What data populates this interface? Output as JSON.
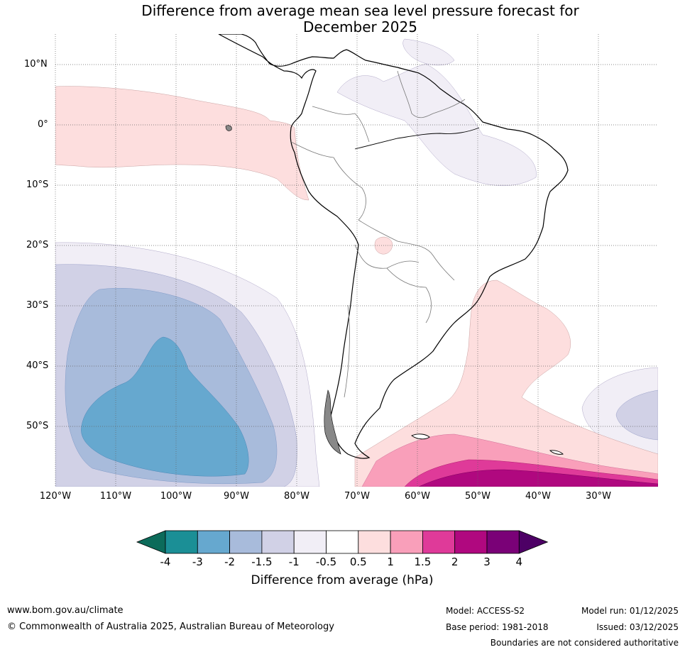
{
  "title_line1": "Difference from average mean sea level pressure forecast for",
  "title_line2": "December 2025",
  "lat_labels": [
    "10°N",
    "0°",
    "10°S",
    "20°S",
    "30°S",
    "40°S",
    "50°S"
  ],
  "lon_labels": [
    "120°W",
    "110°W",
    "100°W",
    "90°W",
    "80°W",
    "70°W",
    "60°W",
    "50°W",
    "40°W",
    "30°W"
  ],
  "colorbar": {
    "title": "Difference from average (hPa)",
    "ticks": [
      "-4",
      "-3",
      "-2",
      "-1.5",
      "-1",
      "-0.5",
      "0.5",
      "1",
      "1.5",
      "2",
      "3",
      "4"
    ],
    "colors": [
      "#1b8f96",
      "#66a8cf",
      "#a8bbdb",
      "#d1d1e6",
      "#f1eef6",
      "#ffffff",
      "#fddede",
      "#f99fba",
      "#df3a99",
      "#b0087f",
      "#7a0177"
    ],
    "under_color": "#0c6b5a",
    "over_color": "#4d0065"
  },
  "footer": {
    "website": "www.bom.gov.au/climate",
    "copyright": "© Commonwealth of Australia 2025, Australian Bureau of Meteorology",
    "model": "Model: ACCESS-S2",
    "base_period": "Base period: 1981-2018",
    "model_run": "Model run: 01/12/2025",
    "issued": "Issued: 03/12/2025",
    "disclaimer": "Boundaries are not considered authoritative"
  }
}
